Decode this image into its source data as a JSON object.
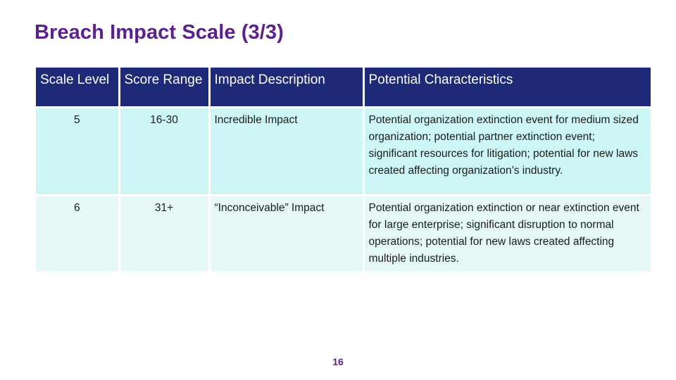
{
  "title": "Breach Impact Scale (3/3)",
  "table": {
    "headers": {
      "scale_level": "Scale Level",
      "score_range": "Score Range",
      "impact_description": "Impact Description",
      "potential_characteristics": "Potential Characteristics"
    },
    "rows": [
      {
        "level": "5",
        "range": "16-30",
        "impact": "Incredible Impact",
        "characteristics": "Potential organization extinction event for medium sized organization; potential partner extinction event; significant resources for litigation; potential for new laws created affecting organization’s industry."
      },
      {
        "level": "6",
        "range": "31+",
        "impact": "“Inconceivable” Impact",
        "characteristics": "Potential organization extinction or near extinction event for large enterprise; significant disruption to normal operations; potential for new laws created affecting multiple industries."
      }
    ],
    "colors": {
      "header_bg": "#1e2a78",
      "row_odd_bg": "#cdf6f6",
      "row_even_bg": "#e6f8f8",
      "title": "#5b1f8f"
    }
  },
  "page_number": "16"
}
